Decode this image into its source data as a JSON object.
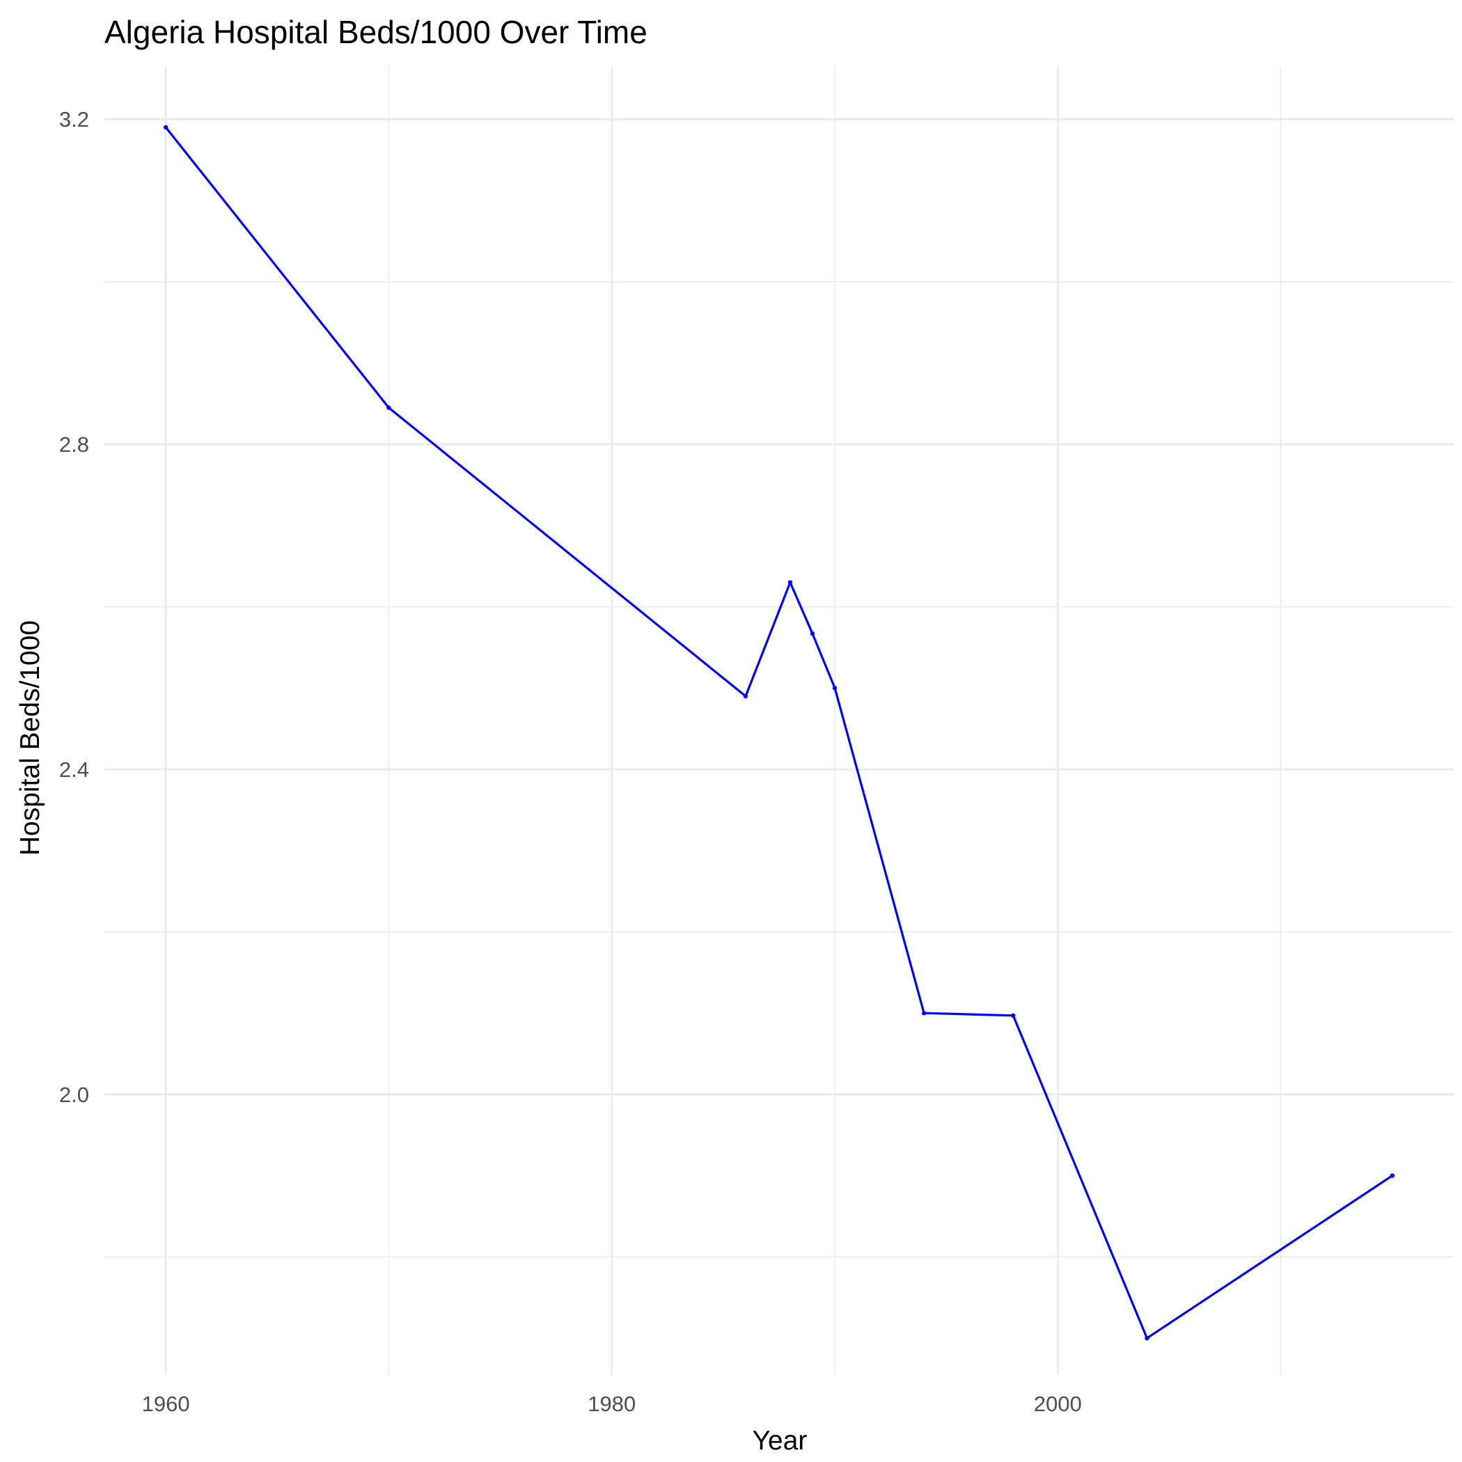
{
  "chart_data": {
    "type": "line",
    "title": "Algeria Hospital Beds/1000 Over Time",
    "xlabel": "Year",
    "ylabel": "Hospital Beds/1000",
    "x_ticks": [
      1960,
      1980,
      2000
    ],
    "x_minor_ticks": [
      1970,
      1990,
      2010
    ],
    "y_ticks": [
      2.0,
      2.4,
      2.8,
      3.2
    ],
    "y_tick_labels": [
      "2.0",
      "2.4",
      "2.8",
      "3.2"
    ],
    "y_minor_ticks": [
      1.8,
      2.2,
      2.6,
      3.0
    ],
    "xlim": [
      1957.25,
      2017.75
    ],
    "ylim": [
      1.6547,
      3.2653
    ],
    "grid": true,
    "legend": "none",
    "series": [
      {
        "color": "#0000ff",
        "x": [
          1960,
          1970,
          1986,
          1988,
          1989,
          1990,
          1994,
          1998,
          2004,
          2015
        ],
        "y": [
          3.19,
          2.845,
          2.49,
          2.63,
          2.567,
          2.5,
          2.1,
          2.097,
          1.7,
          1.9
        ]
      }
    ]
  }
}
